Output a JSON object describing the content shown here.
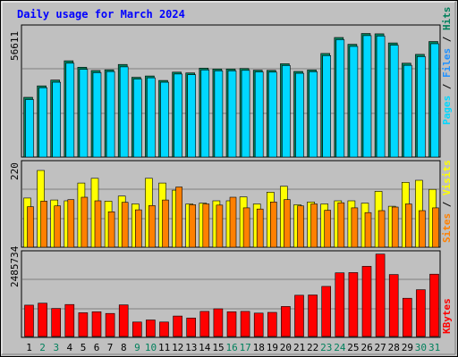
{
  "chart_data": [
    {
      "type": "bar",
      "title": "Daily usage for March 2024",
      "ymax_label": "56611",
      "legend": [
        {
          "name": "Pages",
          "color": "#00d8ff"
        },
        {
          "name": "Files",
          "color": "#1e90ff"
        },
        {
          "name": "Hits",
          "color": "#00805c"
        }
      ],
      "categories": [
        "1",
        "2",
        "3",
        "4",
        "5",
        "6",
        "7",
        "8",
        "9",
        "10",
        "11",
        "12",
        "13",
        "14",
        "15",
        "16",
        "17",
        "18",
        "19",
        "20",
        "21",
        "22",
        "23",
        "24",
        "25",
        "26",
        "27",
        "28",
        "29",
        "30",
        "31"
      ],
      "weekend_days": [
        "2",
        "3",
        "9",
        "10",
        "16",
        "17",
        "23",
        "24",
        "30",
        "31"
      ],
      "series": [
        {
          "name": "Hits",
          "values": [
            32600,
            38800,
            42000,
            52500,
            49000,
            47200,
            47600,
            50500,
            43500,
            44200,
            41800,
            46300,
            45900,
            48500,
            48000,
            48000,
            48300,
            47400,
            47300,
            50900,
            46700,
            47500,
            56500,
            65200,
            61500,
            67400,
            67200,
            62200,
            51200,
            56000,
            63000
          ]
        },
        {
          "name": "Pages",
          "values": [
            31400,
            37800,
            40800,
            51200,
            47800,
            46000,
            46600,
            49200,
            42500,
            43200,
            40800,
            45300,
            44900,
            47500,
            47000,
            47000,
            47300,
            46400,
            46300,
            49900,
            45700,
            46500,
            55300,
            64000,
            60300,
            66200,
            66000,
            61000,
            50000,
            54800,
            61800
          ]
        }
      ]
    },
    {
      "type": "bar",
      "ymax_label": "220",
      "legend": [
        {
          "name": "Sites",
          "color": "#ff8000"
        },
        {
          "name": "Visits",
          "color": "#ffff00"
        }
      ],
      "categories": [
        "1",
        "2",
        "3",
        "4",
        "5",
        "6",
        "7",
        "8",
        "9",
        "10",
        "11",
        "12",
        "13",
        "14",
        "15",
        "16",
        "17",
        "18",
        "19",
        "20",
        "21",
        "22",
        "23",
        "24",
        "25",
        "26",
        "27",
        "28",
        "29",
        "30",
        "31"
      ],
      "series": [
        {
          "name": "Visits",
          "values": [
            125,
            195,
            120,
            118,
            163,
            175,
            117,
            130,
            110,
            175,
            163,
            145,
            110,
            112,
            118,
            118,
            128,
            110,
            140,
            155,
            108,
            115,
            110,
            118,
            118,
            112,
            142,
            104,
            165,
            170,
            147
          ]
        },
        {
          "name": "Sites",
          "values": [
            103,
            117,
            105,
            121,
            127,
            118,
            90,
            114,
            95,
            106,
            120,
            153,
            108,
            110,
            107,
            127,
            100,
            97,
            115,
            121,
            105,
            110,
            94,
            113,
            100,
            88,
            93,
            102,
            110,
            93,
            100
          ]
        }
      ]
    },
    {
      "type": "bar",
      "ymax_label": "2485734",
      "legend": [
        {
          "name": "KBytes",
          "color": "#ff0000"
        }
      ],
      "categories": [
        "1",
        "2",
        "3",
        "4",
        "5",
        "6",
        "7",
        "8",
        "9",
        "10",
        "11",
        "12",
        "13",
        "14",
        "15",
        "16",
        "17",
        "18",
        "19",
        "20",
        "21",
        "22",
        "23",
        "24",
        "25",
        "26",
        "27",
        "28",
        "29",
        "30",
        "31"
      ],
      "series": [
        {
          "name": "KBytes",
          "values": [
            950,
            1010,
            850,
            970,
            720,
            750,
            700,
            960,
            440,
            500,
            440,
            620,
            560,
            760,
            840,
            750,
            760,
            710,
            730,
            910,
            1250,
            1260,
            1520,
            1930,
            1940,
            2130,
            2500,
            1880,
            1160,
            1420,
            1890
          ]
        }
      ]
    }
  ]
}
